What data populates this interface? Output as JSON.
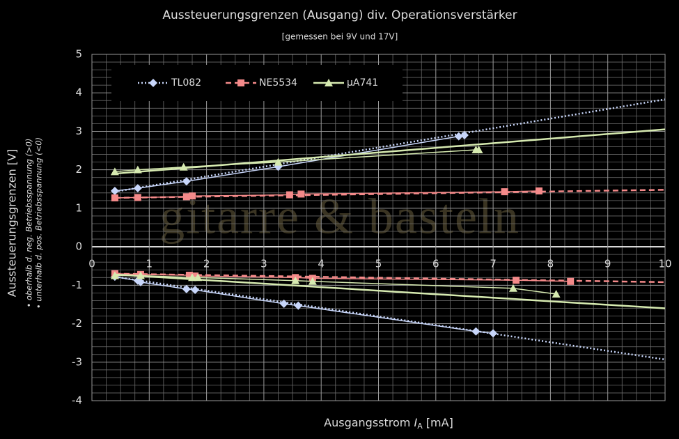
{
  "chart_data": {
    "type": "line",
    "title": "Aussteuerungsgrenzen  (Ausgang) div. Operationsverstärker",
    "subtitle": "[gemessen bei 9V und 17V]",
    "x_label": {
      "text": "Ausgangsstrom ",
      "symbol": "I",
      "subscript": "A",
      "unit": " [mA]"
    },
    "y_label": "Aussteuerungsgrenzen [V]",
    "y_notes": [
      "• oberhalb d. neg. Betriebsspannung (>0)",
      "• unterhalb d. pos. Betriebsspannung (<0)"
    ],
    "watermark": "gitarre & basteln",
    "xlim": [
      0,
      10
    ],
    "xticks": [
      0,
      1,
      2,
      3,
      4,
      5,
      6,
      7,
      8,
      9,
      10
    ],
    "ylim": [
      -4,
      5
    ],
    "yticks": [
      -4,
      -3,
      -2,
      -1,
      0,
      1,
      2,
      3,
      4,
      5
    ],
    "grid": true,
    "minor_grid": {
      "x": 4,
      "y": 5
    },
    "legend": "top-left",
    "series": [
      {
        "name": "TL082",
        "color": "#c8d6fa",
        "dash": "dotted",
        "marker": "diamond",
        "x": [
          0.4,
          0.8,
          1.65,
          3.25,
          6.4,
          6.5,
          null,
          0.4,
          0.8,
          0.85,
          1.65,
          1.8,
          3.35,
          3.6,
          6.7,
          7.0
        ],
        "values": [
          1.45,
          1.52,
          1.7,
          2.08,
          2.87,
          2.9,
          null,
          -0.78,
          -0.88,
          -0.92,
          -1.1,
          -1.12,
          -1.48,
          -1.53,
          -2.2,
          -2.25
        ],
        "trend_x": [
          0.4,
          10,
          null,
          0.4,
          10
        ],
        "trend_values": [
          1.43,
          3.83,
          null,
          -0.78,
          -2.93
        ]
      },
      {
        "name": "NE5534",
        "color": "#f48a8a",
        "dash": "dashed",
        "marker": "square",
        "x": [
          0.4,
          0.8,
          1.65,
          1.75,
          3.45,
          3.65,
          7.2,
          7.8,
          null,
          0.4,
          0.85,
          1.7,
          1.8,
          3.55,
          3.85,
          7.4,
          8.35
        ],
        "values": [
          1.27,
          1.28,
          1.3,
          1.32,
          1.35,
          1.37,
          1.43,
          1.45,
          null,
          -0.7,
          -0.72,
          -0.74,
          -0.76,
          -0.8,
          -0.82,
          -0.87,
          -0.9
        ],
        "trend_x": [
          0.4,
          10,
          null,
          0.4,
          10
        ],
        "trend_values": [
          1.27,
          1.48,
          null,
          -0.7,
          -0.92
        ]
      },
      {
        "name": "µA741",
        "color": "#d6eab0",
        "dash": "solid",
        "marker": "triangle",
        "x": [
          0.4,
          0.8,
          1.6,
          3.25,
          6.7,
          6.75,
          null,
          0.4,
          0.85,
          1.75,
          1.85,
          3.55,
          3.85,
          7.35,
          8.1
        ],
        "values": [
          1.95,
          2.0,
          2.07,
          2.2,
          2.52,
          2.52,
          null,
          -0.75,
          -0.75,
          -0.8,
          -0.8,
          -0.88,
          -0.9,
          -1.08,
          -1.23
        ],
        "trend_x": [
          0.4,
          10,
          null,
          0.4,
          10
        ],
        "trend_values": [
          1.9,
          3.05,
          null,
          -0.72,
          -1.6
        ]
      }
    ]
  }
}
